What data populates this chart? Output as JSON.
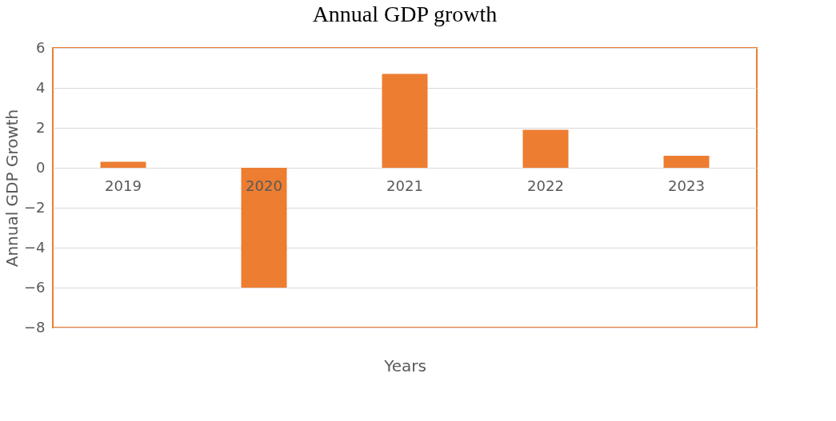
{
  "chart_data": {
    "type": "bar",
    "title": "Annual GDP growth",
    "xlabel": "Years",
    "ylabel": "Annual GDP Growth",
    "categories": [
      "2019",
      "2020",
      "2021",
      "2022",
      "2023"
    ],
    "values": [
      0.3,
      -6.0,
      4.7,
      1.9,
      0.6
    ],
    "color": "#ed7d31",
    "ylim": [
      -8,
      6
    ],
    "yticks": [
      -8,
      -6,
      -4,
      -2,
      0,
      2,
      4,
      6
    ],
    "grid": "y"
  }
}
